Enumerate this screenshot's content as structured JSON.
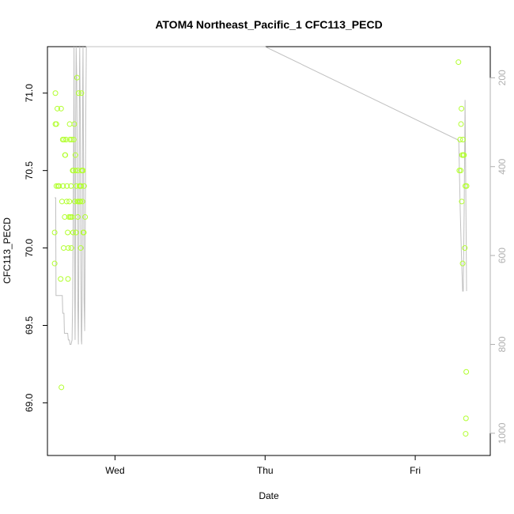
{
  "chart_data": {
    "type": "scatter",
    "title": "ATOM4 Northeast_Pacific_1 CFC113_PECD",
    "xlabel": "Date",
    "ylabel": "CFC113_PECD",
    "x_ticks": [
      {
        "label": "Wed",
        "value": 0.5
      },
      {
        "label": "Thu",
        "value": 1.5
      },
      {
        "label": "Fri",
        "value": 2.5
      }
    ],
    "xlim": [
      0.05,
      3.0
    ],
    "y_ticks": [
      {
        "label": "69.0",
        "value": 69.0
      },
      {
        "label": "69.5",
        "value": 69.5
      },
      {
        "label": "70.0",
        "value": 70.0
      },
      {
        "label": "70.5",
        "value": 70.5
      },
      {
        "label": "71.0",
        "value": 71.0
      }
    ],
    "ylim": [
      68.66,
      71.3
    ],
    "y2_ticks": [
      {
        "label": "200",
        "value": 200
      },
      {
        "label": "400",
        "value": 400
      },
      {
        "label": "600",
        "value": 600
      },
      {
        "label": "800",
        "value": 800
      },
      {
        "label": "1000",
        "value": 1000
      }
    ],
    "y2lim": [
      1050,
      130
    ],
    "y2_reversed": true,
    "series": [
      {
        "kind": "scatter",
        "color": "#b2ff2e",
        "marker": "open-circle",
        "points": [
          [
            0.098,
            70.1
          ],
          [
            0.098,
            69.9
          ],
          [
            0.103,
            70.8
          ],
          [
            0.103,
            71.0
          ],
          [
            0.11,
            70.4
          ],
          [
            0.11,
            70.8
          ],
          [
            0.116,
            70.9
          ],
          [
            0.121,
            70.4
          ],
          [
            0.127,
            70.4
          ],
          [
            0.138,
            69.8
          ],
          [
            0.141,
            70.9
          ],
          [
            0.143,
            69.1
          ],
          [
            0.147,
            70.3
          ],
          [
            0.152,
            70.7
          ],
          [
            0.154,
            70.4
          ],
          [
            0.158,
            70.0
          ],
          [
            0.16,
            70.7
          ],
          [
            0.165,
            70.2
          ],
          [
            0.167,
            70.6
          ],
          [
            0.169,
            70.6
          ],
          [
            0.174,
            70.7
          ],
          [
            0.178,
            70.3
          ],
          [
            0.18,
            70.4
          ],
          [
            0.185,
            70.1
          ],
          [
            0.187,
            69.8
          ],
          [
            0.189,
            70.0
          ],
          [
            0.193,
            70.2
          ],
          [
            0.196,
            70.3
          ],
          [
            0.198,
            70.8
          ],
          [
            0.2,
            70.7
          ],
          [
            0.202,
            70.2
          ],
          [
            0.205,
            70.2
          ],
          [
            0.207,
            70.4
          ],
          [
            0.209,
            70.0
          ],
          [
            0.212,
            70.7
          ],
          [
            0.214,
            70.2
          ],
          [
            0.218,
            70.5
          ],
          [
            0.221,
            70.1
          ],
          [
            0.223,
            70.5
          ],
          [
            0.225,
            70.7
          ],
          [
            0.229,
            70.8
          ],
          [
            0.232,
            70.3
          ],
          [
            0.236,
            70.6
          ],
          [
            0.238,
            70.5
          ],
          [
            0.241,
            70.1
          ],
          [
            0.243,
            70.4
          ],
          [
            0.247,
            71.1
          ],
          [
            0.25,
            70.3
          ],
          [
            0.252,
            70.2
          ],
          [
            0.254,
            70.5
          ],
          [
            0.256,
            70.3
          ],
          [
            0.258,
            71.0
          ],
          [
            0.263,
            70.4
          ],
          [
            0.265,
            70.3
          ],
          [
            0.267,
            70.4
          ],
          [
            0.269,
            70.3
          ],
          [
            0.272,
            70.0
          ],
          [
            0.274,
            70.4
          ],
          [
            0.276,
            71.0
          ],
          [
            0.278,
            70.5
          ],
          [
            0.281,
            70.5
          ],
          [
            0.283,
            70.3
          ],
          [
            0.287,
            70.5
          ],
          [
            0.289,
            70.1
          ],
          [
            0.292,
            70.1
          ],
          [
            0.294,
            70.4
          ],
          [
            0.301,
            70.2
          ],
          [
            2.788,
            71.2
          ],
          [
            2.794,
            70.5
          ],
          [
            2.799,
            70.7
          ],
          [
            2.803,
            70.5
          ],
          [
            2.805,
            70.8
          ],
          [
            2.808,
            70.9
          ],
          [
            2.81,
            70.3
          ],
          [
            2.812,
            70.6
          ],
          [
            2.816,
            69.9
          ],
          [
            2.818,
            70.7
          ],
          [
            2.82,
            70.6
          ],
          [
            2.825,
            70.6
          ],
          [
            2.83,
            70.0
          ],
          [
            2.834,
            70.4
          ],
          [
            2.836,
            68.8
          ],
          [
            2.838,
            68.9
          ],
          [
            2.84,
            69.2
          ],
          [
            2.842,
            70.4
          ]
        ]
      },
      {
        "kind": "line",
        "color": "#c0c0c0",
        "axis": "right",
        "points": [
          [
            0.098,
            470
          ],
          [
            0.105,
            470
          ],
          [
            0.107,
            690
          ],
          [
            0.121,
            690
          ],
          [
            0.132,
            690
          ],
          [
            0.143,
            690
          ],
          [
            0.149,
            690
          ],
          [
            0.152,
            730
          ],
          [
            0.16,
            730
          ],
          [
            0.163,
            775
          ],
          [
            0.178,
            775
          ],
          [
            0.185,
            775
          ],
          [
            0.189,
            790
          ],
          [
            0.196,
            790
          ],
          [
            0.2,
            800
          ],
          [
            0.207,
            800
          ],
          [
            0.214,
            790
          ],
          [
            0.218,
            700
          ],
          [
            0.225,
            300
          ],
          [
            0.227,
            130
          ],
          [
            0.229,
            400
          ],
          [
            0.232,
            700
          ],
          [
            0.234,
            790
          ],
          [
            0.236,
            700
          ],
          [
            0.238,
            300
          ],
          [
            0.241,
            130
          ],
          [
            0.245,
            200
          ],
          [
            0.249,
            400
          ],
          [
            0.252,
            700
          ],
          [
            0.256,
            800
          ],
          [
            0.258,
            700
          ],
          [
            0.261,
            400
          ],
          [
            0.263,
            200
          ],
          [
            0.265,
            130
          ],
          [
            0.269,
            300
          ],
          [
            0.272,
            600
          ],
          [
            0.276,
            790
          ],
          [
            0.278,
            800
          ],
          [
            0.281,
            700
          ],
          [
            0.283,
            400
          ],
          [
            0.285,
            200
          ],
          [
            0.287,
            130
          ],
          [
            0.289,
            300
          ],
          [
            0.292,
            500
          ],
          [
            0.294,
            700
          ],
          [
            0.298,
            770
          ],
          [
            0.301,
            600
          ],
          [
            0.305,
            300
          ],
          [
            0.309,
            130
          ],
          [
            0.42,
            130
          ],
          [
            1.5,
            130
          ],
          [
            2.785,
            340
          ],
          [
            2.79,
            340
          ],
          [
            2.8,
            500
          ],
          [
            2.808,
            600
          ],
          [
            2.816,
            680
          ],
          [
            2.82,
            680
          ],
          [
            2.826,
            500
          ],
          [
            2.832,
            250
          ],
          [
            2.838,
            500
          ],
          [
            2.842,
            680
          ]
        ]
      }
    ]
  }
}
